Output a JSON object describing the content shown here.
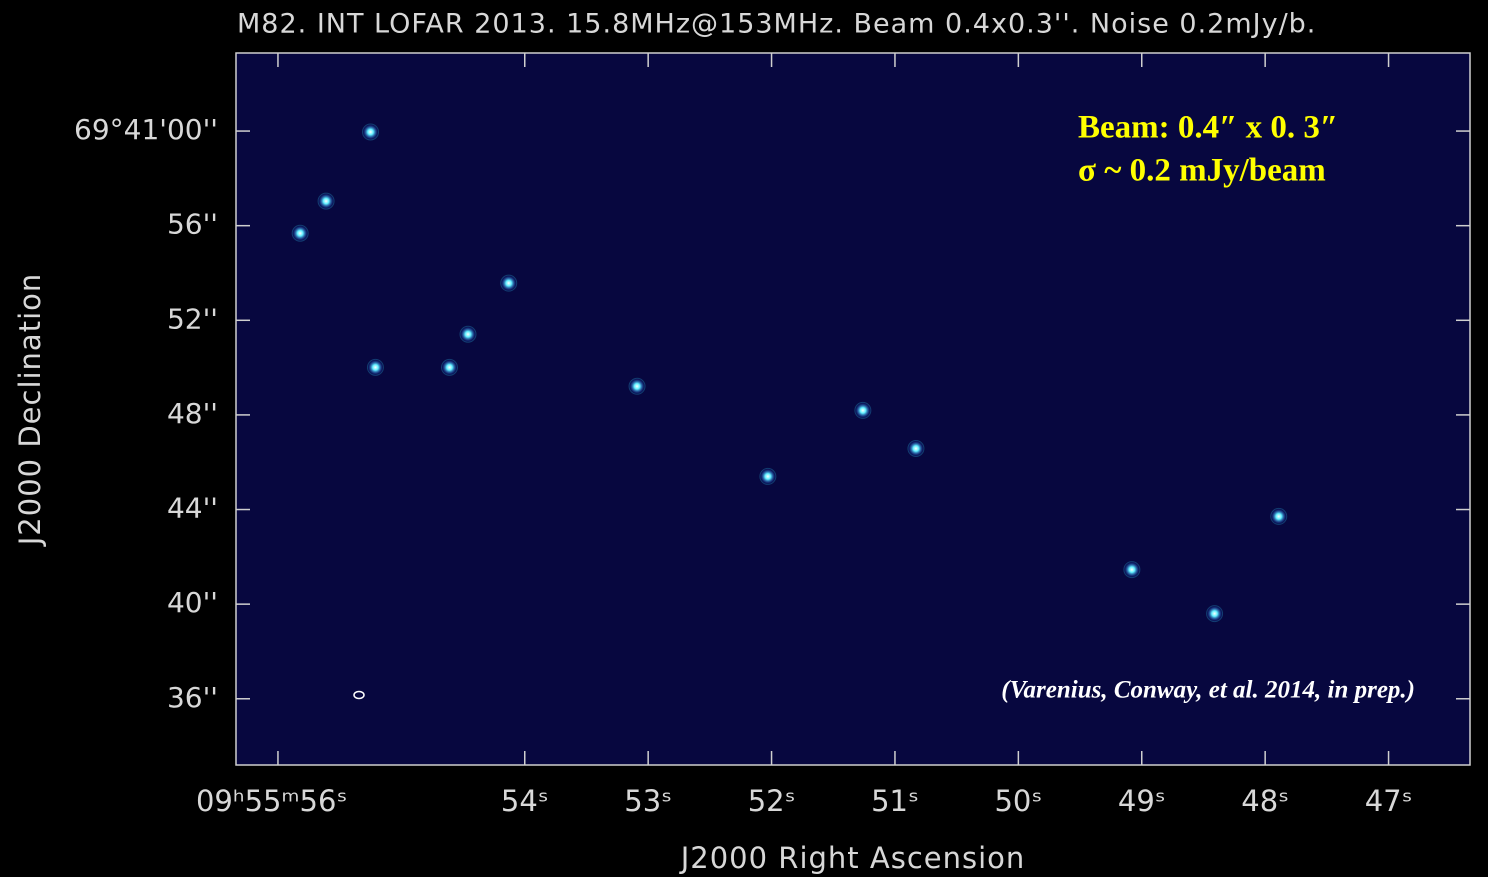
{
  "chart_data": {
    "type": "scatter",
    "title": "M82. INT LOFAR 2013. 15.8MHz@153MHz. Beam 0.4x0.3''. Noise 0.2mJy/b.",
    "x_label": "J2000 Right Ascension",
    "y_label": "J2000 Declination",
    "annotations": [
      "Beam: 0.4″ x 0. 3″",
      "σ ~ 0.2 mJy/beam",
      "(Varenius, Conway, et al. 2014, in prep.)"
    ],
    "xlim": [
      56.34,
      46.34
    ],
    "ylim": [
      33.2,
      63.3
    ],
    "xticks": [
      {
        "value": 56,
        "label": "09ʰ55ᵐ56ˢ"
      },
      {
        "value": 54,
        "label": "54ˢ"
      },
      {
        "value": 53,
        "label": "53ˢ"
      },
      {
        "value": 52,
        "label": "52ˢ"
      },
      {
        "value": 51,
        "label": "51ˢ"
      },
      {
        "value": 50,
        "label": "50ˢ"
      },
      {
        "value": 49,
        "label": "49ˢ"
      },
      {
        "value": 48,
        "label": "48ˢ"
      },
      {
        "value": 47,
        "label": "47ˢ"
      }
    ],
    "yticks": [
      {
        "value": 60,
        "label": "69°41'00''"
      },
      {
        "value": 56,
        "label": "56''"
      },
      {
        "value": 52,
        "label": "52''"
      },
      {
        "value": 48,
        "label": "48''"
      },
      {
        "value": 44,
        "label": "44''"
      },
      {
        "value": 40,
        "label": "40''"
      },
      {
        "value": 36,
        "label": "36''"
      }
    ],
    "series": [
      {
        "color": "#35d8ff",
        "x": [
          55.25,
          54.13,
          54.46,
          55.21,
          55.61,
          55.82,
          52.03,
          50.83,
          51.26,
          53.09,
          54.61,
          49.08,
          47.89,
          48.41
        ],
        "values": [
          59.96,
          53.57,
          51.41,
          50.01,
          57.04,
          55.68,
          45.4,
          46.58,
          48.19,
          49.21,
          50.01,
          41.46,
          43.71,
          39.6
        ]
      }
    ]
  }
}
